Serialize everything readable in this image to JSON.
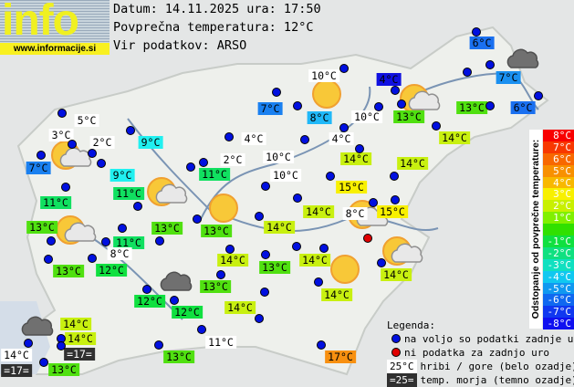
{
  "logo": {
    "text": "info",
    "url": "www.informacije.si"
  },
  "header": {
    "date_line": "Datum: 14.11.2025 ura: 17:50",
    "avg_line": "Povprečna temperatura: 12°C",
    "source_line": "Vir podatkov: ARSO"
  },
  "scale": {
    "title": "Odstopanje od povprečne temperature:",
    "steps": [
      {
        "label": "8°C",
        "color": "#f80000"
      },
      {
        "label": "7°C",
        "color": "#f83800"
      },
      {
        "label": "6°C",
        "color": "#f86800"
      },
      {
        "label": "5°C",
        "color": "#f89000"
      },
      {
        "label": "4°C",
        "color": "#f8b800"
      },
      {
        "label": "3°C",
        "color": "#f8f000"
      },
      {
        "label": "2°C",
        "color": "#c8f000"
      },
      {
        "label": "1°C",
        "color": "#80f000"
      },
      {
        "label": "",
        "color": "#30e000"
      },
      {
        "label": "-1°C",
        "color": "#10e040"
      },
      {
        "label": "-2°C",
        "color": "#10e080"
      },
      {
        "label": "-3°C",
        "color": "#10e0c0"
      },
      {
        "label": "-4°C",
        "color": "#10c8f0"
      },
      {
        "label": "-5°C",
        "color": "#1098f0"
      },
      {
        "label": "-6°C",
        "color": "#1068f0"
      },
      {
        "label": "-7°C",
        "color": "#1038f0"
      },
      {
        "label": "-8°C",
        "color": "#1010f0"
      }
    ]
  },
  "legend": {
    "title": "Legenda:",
    "available": "na voljo so podatki zadnje ure",
    "missing": "ni podatka za zadnjo uro",
    "mountain_sample": "25°C",
    "mountain": "hribi / gore (belo ozadje)",
    "sea_sample": "=25=",
    "sea": "temp. morja (temno ozadje)",
    "available_color": "#0010e0",
    "missing_color": "#e00000"
  },
  "stations": [
    {
      "temp": "5°C",
      "color": "#ffffff"
    },
    {
      "temp": "3°C",
      "color": "#ffffff"
    },
    {
      "temp": "2°C",
      "color": "#ffffff"
    },
    {
      "temp": "9°C",
      "color": "#20f0f0"
    },
    {
      "temp": "7°C",
      "color": "#1a80f0"
    },
    {
      "temp": "9°C",
      "color": "#20f0f0"
    },
    {
      "temp": "11°C",
      "color": "#10e060"
    },
    {
      "temp": "11°C",
      "color": "#10e060"
    },
    {
      "temp": "4°C",
      "color": "#ffffff"
    },
    {
      "temp": "2°C",
      "color": "#ffffff"
    },
    {
      "temp": "11°C",
      "color": "#10e060"
    },
    {
      "temp": "10°C",
      "color": "#ffffff"
    },
    {
      "temp": "13°C",
      "color": "#50e010"
    },
    {
      "temp": "11°C",
      "color": "#10e060"
    },
    {
      "temp": "13°C",
      "color": "#50e010"
    },
    {
      "temp": "13°C",
      "color": "#50e010"
    },
    {
      "temp": "14°C",
      "color": "#c8f010"
    },
    {
      "temp": "8°C",
      "color": "#ffffff"
    },
    {
      "temp": "13°C",
      "color": "#50e010"
    },
    {
      "temp": "12°C",
      "color": "#10e040"
    },
    {
      "temp": "14°C",
      "color": "#c8f010"
    },
    {
      "temp": "13°C",
      "color": "#50e010"
    },
    {
      "temp": "14°C",
      "color": "#c8f010"
    },
    {
      "temp": "13°C",
      "color": "#50e010"
    },
    {
      "temp": "12°C",
      "color": "#10e040"
    },
    {
      "temp": "12°C",
      "color": "#10e040"
    },
    {
      "temp": "14°C",
      "color": "#c8f010"
    },
    {
      "temp": "11°C",
      "color": "#ffffff"
    },
    {
      "temp": "13°C",
      "color": "#50e010"
    },
    {
      "temp": "14°C",
      "color": "#c8f010"
    },
    {
      "temp": "14°C",
      "color": "#c8f010"
    },
    {
      "temp": "=17=",
      "color": "#303030"
    },
    {
      "temp": "14°C",
      "color": "#ffffff"
    },
    {
      "temp": "=17=",
      "color": "#303030"
    },
    {
      "temp": "13°C",
      "color": "#50e010"
    },
    {
      "temp": "17°C",
      "color": "#f89010"
    },
    {
      "temp": "14°C",
      "color": "#c8f010"
    },
    {
      "temp": "14°C",
      "color": "#c8f010"
    },
    {
      "temp": "14°C",
      "color": "#c8f010"
    },
    {
      "temp": "8°C",
      "color": "#ffffff"
    },
    {
      "temp": "15°C",
      "color": "#f8f000"
    },
    {
      "temp": "15°C",
      "color": "#f8f000"
    },
    {
      "temp": "10°C",
      "color": "#ffffff"
    },
    {
      "temp": "14°C",
      "color": "#c8f010"
    },
    {
      "temp": "14°C",
      "color": "#c8f010"
    },
    {
      "temp": "4°C",
      "color": "#ffffff"
    },
    {
      "temp": "8°C",
      "color": "#20b8f8"
    },
    {
      "temp": "7°C",
      "color": "#1a80f0"
    },
    {
      "temp": "10°C",
      "color": "#ffffff"
    },
    {
      "temp": "4°C",
      "color": "#1010e0"
    },
    {
      "temp": "10°C",
      "color": "#ffffff"
    },
    {
      "temp": "13°C",
      "color": "#50e010"
    },
    {
      "temp": "13°C",
      "color": "#50e010"
    },
    {
      "temp": "14°C",
      "color": "#c8f010"
    },
    {
      "temp": "6°C",
      "color": "#1a70f0"
    },
    {
      "temp": "7°C",
      "color": "#1a90f0"
    },
    {
      "temp": "6°C",
      "color": "#1a70f0"
    }
  ],
  "dots": [
    "blue",
    "blue",
    "blue",
    "blue",
    "blue",
    "blue",
    "blue",
    "blue",
    "blue",
    "blue",
    "blue",
    "blue",
    "blue",
    "blue",
    "blue",
    "blue",
    "blue",
    "blue",
    "blue",
    "blue",
    "blue",
    "blue",
    "blue",
    "blue",
    "blue",
    "blue",
    "blue",
    "blue",
    "blue",
    "blue",
    "blue",
    "blue",
    "blue",
    "blue",
    "blue",
    "blue",
    "blue",
    "blue",
    "blue",
    "blue",
    "blue",
    "blue",
    "blue",
    "blue",
    "blue",
    "blue",
    "blue",
    "blue",
    "blue",
    "blue",
    "blue",
    "blue",
    "blue",
    "blue",
    "blue",
    "blue",
    "blue",
    "blue",
    "red",
    "red",
    "red"
  ],
  "weather_icons": [
    "sun-cloud",
    "sun-cloud",
    "sun-cloud",
    "sun",
    "sun",
    "sun-cloud",
    "dark-cloud",
    "sun",
    "sun-cloud",
    "sun-cloud",
    "dark-cloud",
    "dark-cloud"
  ]
}
